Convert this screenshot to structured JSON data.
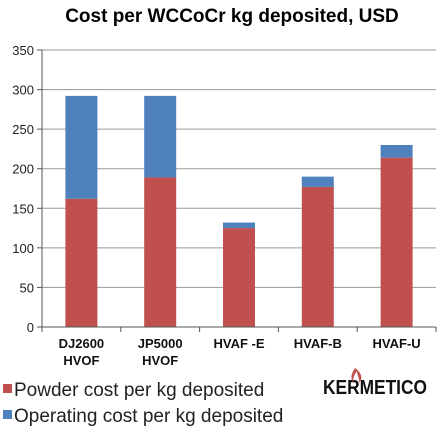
{
  "chart_data": {
    "type": "bar",
    "stacked": true,
    "title": "Cost per WCCoCr kg deposited, USD",
    "categories": [
      [
        "DJ2600",
        "HVOF"
      ],
      [
        "JP5000",
        "HVOF"
      ],
      [
        "HVAF -E"
      ],
      [
        "HVAF-B"
      ],
      [
        "HVAF-U"
      ]
    ],
    "series": [
      {
        "name": "Powder cost per kg deposited",
        "color": "#c0504d",
        "values": [
          162,
          189,
          125,
          177,
          214
        ]
      },
      {
        "name": "Operating cost per kg deposited",
        "color": "#4f81bd",
        "values": [
          130,
          103,
          7,
          13,
          16
        ]
      }
    ],
    "yticks": [
      0,
      50,
      100,
      150,
      200,
      250,
      300,
      350
    ],
    "ylim": [
      0,
      350
    ],
    "grid": true,
    "legend_position": "bottom-left"
  },
  "logo": {
    "text": "KERMETICO",
    "accent": "#c0504d"
  }
}
